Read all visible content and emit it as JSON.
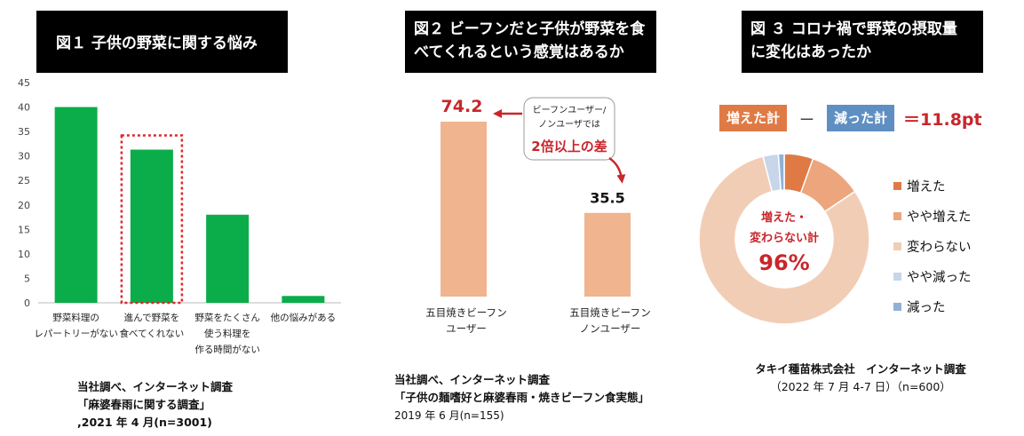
{
  "panel1": {
    "title": "図１ 子供の野菜に関する悩み",
    "chart_data": {
      "type": "bar",
      "categories": [
        [
          "野菜料理の",
          "レパートリーがない"
        ],
        [
          "進んで野菜を",
          "食べてくれない"
        ],
        [
          "野菜をたくさん",
          "使う料理を",
          "作る時間がない"
        ],
        [
          "他の悩みがある"
        ]
      ],
      "values": [
        40,
        31.3,
        18,
        1.4
      ],
      "highlight_index": 1,
      "ylim": [
        0,
        45
      ],
      "yticks": [
        "0",
        "5",
        "10",
        "15",
        "20",
        "25",
        "30",
        "35",
        "40",
        "45"
      ],
      "bar_color": "#0aad4a",
      "highlight_color": "#e2242b",
      "grid": false
    },
    "caption_lines": [
      "当社調べ、インターネット調査",
      "「麻婆春雨に関する調査」",
      ",2021 年 4 月(n=3001)"
    ]
  },
  "panel2": {
    "title": "図２ ビーフンだと子供が野菜を食べてくれるという感覚はあるか",
    "title_lines": [
      "図２ ビーフンだと子供が野菜を食",
      "べてくれるという感覚はあるか"
    ],
    "chart_data": {
      "type": "bar",
      "categories": [
        [
          "五目焼きビーフン",
          "ユーザー"
        ],
        [
          "五目焼きビーフン",
          "ノンユーザー"
        ]
      ],
      "values": [
        74.2,
        35.5
      ],
      "value_labels": [
        "74.2",
        "35.5"
      ],
      "ylim": [
        0,
        80
      ],
      "bar_color": "#f0b48f",
      "grid": false
    },
    "callout": {
      "lines": [
        "ビーフンユーザー/",
        "ノンユーザでは"
      ],
      "emphasis": "2倍以上の差",
      "accent": "#c8262b"
    },
    "caption_lines": [
      "当社調べ、インターネット調査",
      "「子供の麺嗜好と麻婆春雨・焼きビーフン食実態」",
      "2019 年 6 月(n=155)"
    ]
  },
  "panel3": {
    "title": "図３ コロナ禍で野菜の摂取量に変化はあったか",
    "title_lines": [
      "図 ３ コロナ禍で野菜の摂取量",
      "に変化はあったか"
    ],
    "badges": {
      "increase": "増えた計",
      "minus": "ー",
      "decrease": "減った計",
      "result": "＝11.8pt",
      "increase_color": "#e07a45",
      "decrease_color": "#5f8fc2"
    },
    "chart_data": {
      "type": "pie",
      "style": "donut",
      "categories": [
        "増えた",
        "やや増えた",
        "変わらない",
        "やや減った",
        "減った"
      ],
      "values": [
        5.5,
        10.1,
        80.4,
        2.9,
        1.1
      ],
      "colors": [
        "#e07a45",
        "#eca57c",
        "#f2cdb6",
        "#c7d6e8",
        "#8fb1d6"
      ],
      "center_label": [
        "増えた・",
        "変わらない計"
      ],
      "center_value": "96%",
      "legend_position": "right"
    },
    "caption_lines": [
      "タキイ種苗株式会社　インターネット調査",
      "（2022 年 7 月 4-7 日）（n=600）"
    ]
  }
}
